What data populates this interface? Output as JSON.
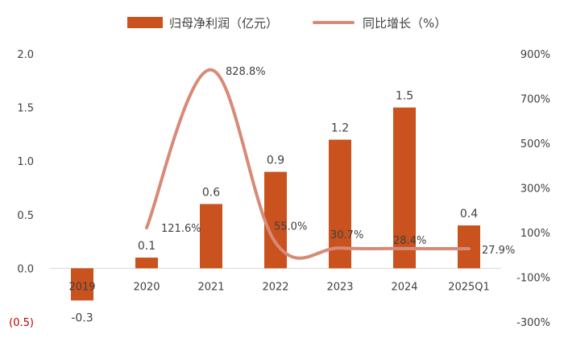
{
  "chart_data": {
    "type": "bar",
    "categories": [
      "2019",
      "2020",
      "2021",
      "2022",
      "2023",
      "2024",
      "2025Q1"
    ],
    "series": [
      {
        "name": "归母净利润（亿元）",
        "type": "bar",
        "axis": "left",
        "values": [
          -0.3,
          0.1,
          0.6,
          0.9,
          1.2,
          1.5,
          0.4
        ],
        "labels": [
          "-0.3",
          "0.1",
          "0.6",
          "0.9",
          "1.2",
          "1.5",
          "0.4"
        ],
        "color": "#C9521E"
      },
      {
        "name": "同比增长（%）",
        "type": "line",
        "axis": "right",
        "values": [
          null,
          121.6,
          828.8,
          55.0,
          30.7,
          28.4,
          27.9
        ],
        "labels": [
          "",
          "121.6%",
          "828.8%",
          "55.0%",
          "30.7%",
          "28.4%",
          "27.9%"
        ],
        "color": "#D88A78"
      }
    ],
    "left_axis": {
      "ticks": [
        -0.5,
        0.0,
        0.5,
        1.0,
        1.5,
        2.0
      ],
      "tick_labels": [
        "(0.5)",
        "0.0",
        "0.5",
        "1.0",
        "1.5",
        "2.0"
      ],
      "range": [
        -0.5,
        2.0
      ],
      "negative_label_color": "#C00000"
    },
    "right_axis": {
      "ticks": [
        -300,
        -100,
        100,
        300,
        500,
        700,
        900
      ],
      "tick_labels": [
        "-300%",
        "-100%",
        "100%",
        "300%",
        "500%",
        "700%",
        "900%"
      ],
      "range": [
        -300,
        900
      ]
    },
    "legend_position": "top",
    "grid": false,
    "axis_color": "#D9D9D9",
    "text_color": "#404040"
  }
}
